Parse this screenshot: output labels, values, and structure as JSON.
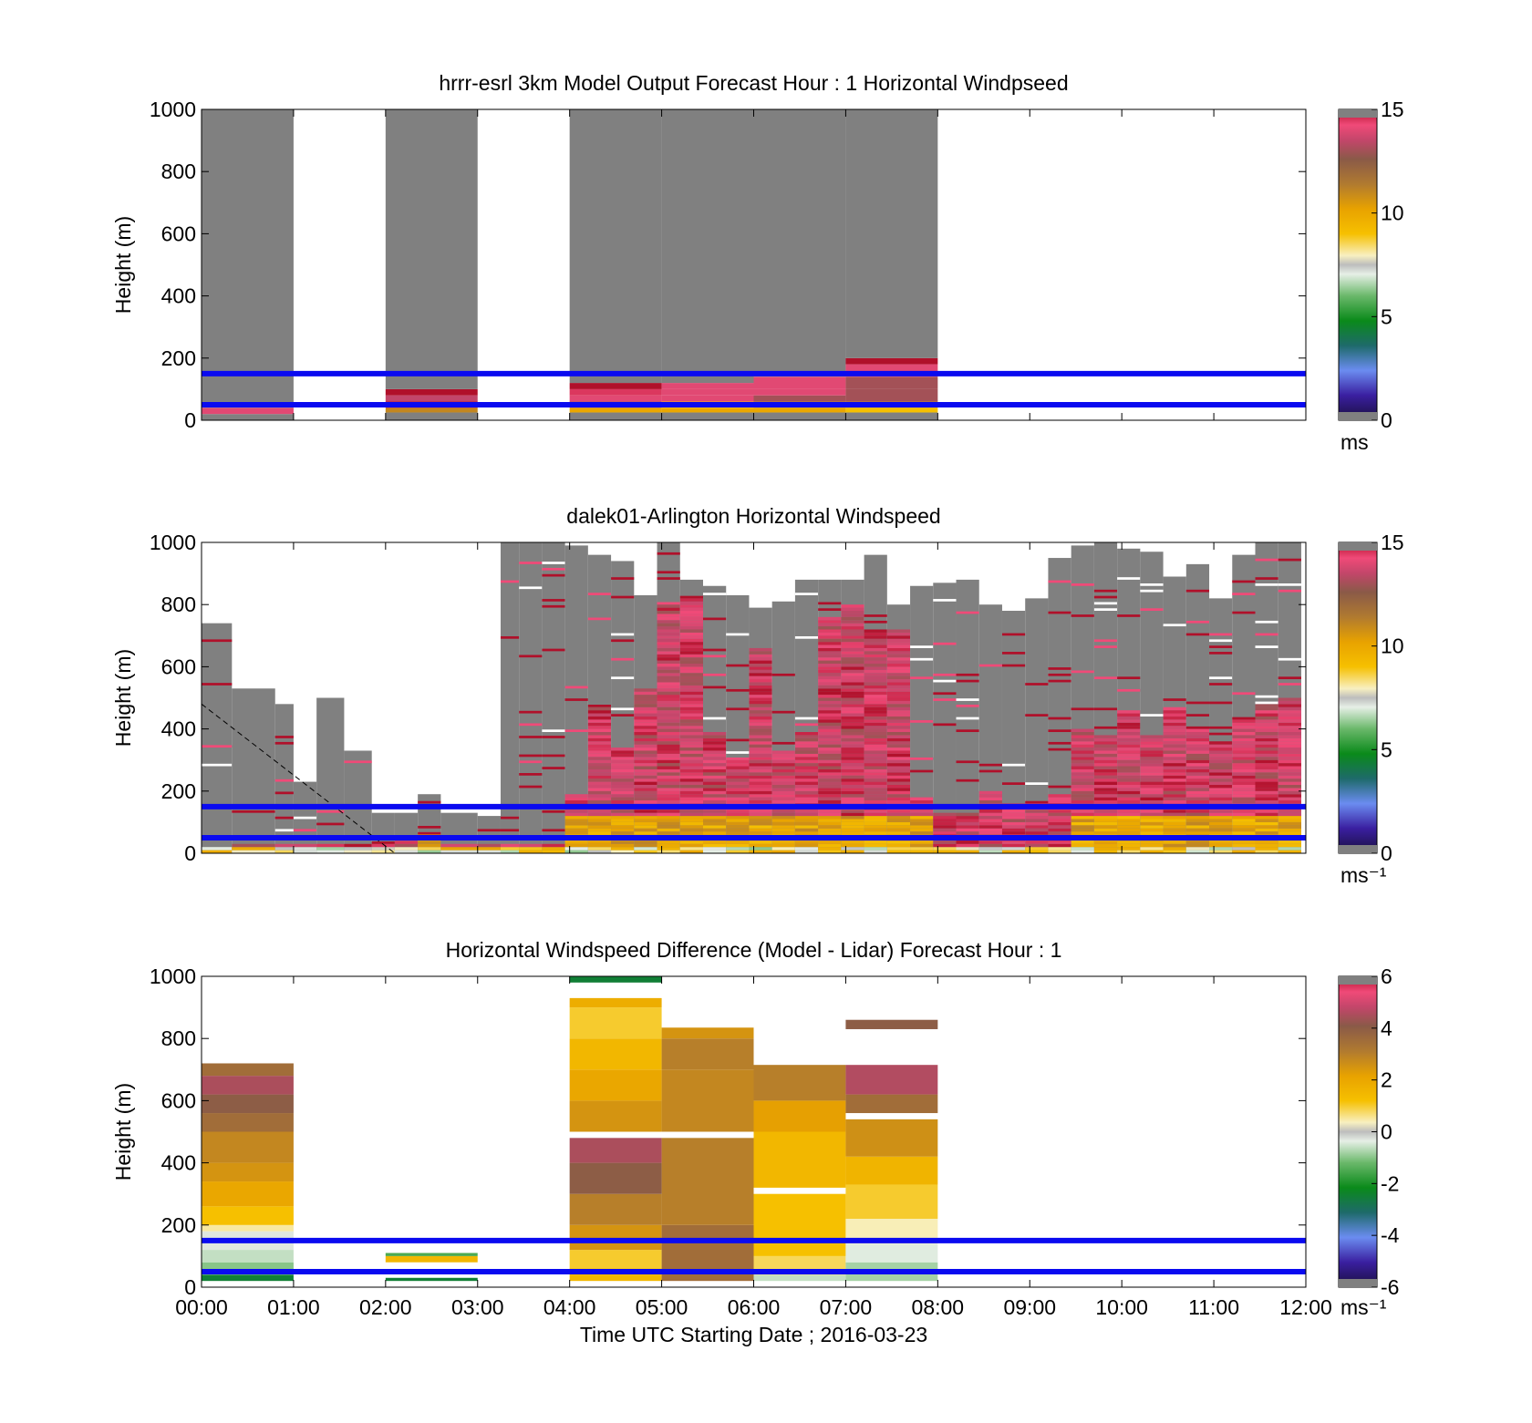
{
  "figure": {
    "x_tick_labels": [
      "00:00",
      "01:00",
      "02:00",
      "03:00",
      "04:00",
      "05:00",
      "06:00",
      "07:00",
      "08:00",
      "09:00",
      "10:00",
      "11:00",
      "12:00"
    ],
    "x_axis_label": "Time UTC  Starting Date ; 2016-03-23",
    "y_axis_label": "Height (m)",
    "y_tick_labels": [
      "0",
      "200",
      "400",
      "600",
      "800",
      "1000"
    ],
    "reference_lines_m": [
      50,
      150
    ],
    "colors": {
      "reference_line": "#0a0af0",
      "missing": "#808080"
    }
  },
  "chart_data": [
    {
      "type": "heatmap",
      "title": "hrrr-esrl 3km Model Output   Forecast Hour : 1 Horizontal Windpseed",
      "xlabel": "",
      "ylabel": "Height (m)",
      "xlim": [
        0,
        12
      ],
      "ylim": [
        0,
        1000
      ],
      "colorbar": {
        "range": [
          0,
          15
        ],
        "tick_labels": [
          "0",
          "5",
          "10",
          "15"
        ],
        "unit_label": "ms"
      },
      "columns": [
        {
          "start_hour": 0,
          "end_hour": 1,
          "cells": [
            [
              0,
              20,
              -1
            ],
            [
              20,
              40,
              14
            ],
            [
              40,
              1000,
              -1
            ]
          ]
        },
        {
          "start_hour": 2,
          "end_hour": 3,
          "cells": [
            [
              0,
              25,
              -1
            ],
            [
              25,
              40,
              11
            ],
            [
              40,
              60,
              15
            ],
            [
              60,
              80,
              13.5
            ],
            [
              80,
              100,
              15
            ],
            [
              100,
              1000,
              -1
            ]
          ]
        },
        {
          "start_hour": 4,
          "end_hour": 5,
          "cells": [
            [
              0,
              25,
              -1
            ],
            [
              25,
              40,
              10
            ],
            [
              40,
              60,
              13
            ],
            [
              60,
              80,
              14
            ],
            [
              80,
              100,
              14.5
            ],
            [
              100,
              120,
              15
            ],
            [
              120,
              1000,
              -1
            ]
          ]
        },
        {
          "start_hour": 5,
          "end_hour": 6,
          "cells": [
            [
              0,
              25,
              -1
            ],
            [
              25,
              40,
              10
            ],
            [
              40,
              60,
              9
            ],
            [
              60,
              80,
              14
            ],
            [
              80,
              100,
              14
            ],
            [
              100,
              120,
              14
            ],
            [
              120,
              1000,
              -1
            ]
          ]
        },
        {
          "start_hour": 6,
          "end_hour": 7,
          "cells": [
            [
              0,
              25,
              -1
            ],
            [
              25,
              40,
              10
            ],
            [
              40,
              60,
              11
            ],
            [
              60,
              80,
              13
            ],
            [
              80,
              100,
              14
            ],
            [
              100,
              140,
              14
            ],
            [
              140,
              1000,
              -1
            ]
          ]
        },
        {
          "start_hour": 7,
          "end_hour": 8,
          "cells": [
            [
              0,
              25,
              -1
            ],
            [
              25,
              40,
              9
            ],
            [
              40,
              60,
              11
            ],
            [
              60,
              100,
              13
            ],
            [
              100,
              140,
              13
            ],
            [
              140,
              180,
              14
            ],
            [
              180,
              200,
              15
            ],
            [
              200,
              1000,
              -1
            ]
          ]
        }
      ]
    },
    {
      "type": "heatmap",
      "title": "dalek01-Arlington  Horizontal Windspeed",
      "xlabel": "",
      "ylabel": "Height (m)",
      "xlim": [
        0,
        12
      ],
      "ylim": [
        0,
        1000
      ],
      "colorbar": {
        "range": [
          0,
          15
        ],
        "tick_labels": [
          "0",
          "5",
          "10",
          "15"
        ],
        "unit_label": "ms⁻¹"
      },
      "profiles": [
        {
          "t0": 0.0,
          "t1": 0.33,
          "missing_top": 740,
          "strong_top": 20,
          "gold": 0,
          "note_levels": []
        },
        {
          "t0": 0.33,
          "t1": 0.8,
          "missing_top": 530,
          "strong_top": 30,
          "gold": 0
        },
        {
          "t0": 0.8,
          "t1": 1.0,
          "missing_top": 480,
          "strong_top": 30,
          "gold": 0
        },
        {
          "t0": 1.0,
          "t1": 1.25,
          "missing_top": 230,
          "strong_top": 30,
          "gold": 0
        },
        {
          "t0": 1.25,
          "t1": 1.55,
          "missing_top": 500,
          "strong_top": 30,
          "gold": 0
        },
        {
          "t0": 1.55,
          "t1": 1.85,
          "missing_top": 330,
          "strong_top": 30,
          "gold": 0
        },
        {
          "t0": 1.85,
          "t1": 2.1,
          "missing_top": 130,
          "strong_top": 30,
          "gold": 0
        },
        {
          "t0": 2.1,
          "t1": 2.35,
          "missing_top": 130,
          "strong_top": 40,
          "gold": 0
        },
        {
          "t0": 2.35,
          "t1": 2.6,
          "missing_top": 190,
          "strong_top": 60,
          "gold": 1
        },
        {
          "t0": 2.6,
          "t1": 3.0,
          "missing_top": 130,
          "strong_top": 30,
          "gold": 0
        },
        {
          "t0": 3.0,
          "t1": 3.25,
          "missing_top": 120,
          "strong_top": 30,
          "gold": 0
        },
        {
          "t0": 3.25,
          "t1": 3.45,
          "missing_top": 1000,
          "strong_top": 30,
          "gold": 0
        },
        {
          "t0": 3.45,
          "t1": 3.7,
          "missing_top": 1000,
          "strong_top": 30,
          "gold": 0
        },
        {
          "t0": 3.7,
          "t1": 3.95,
          "missing_top": 1000,
          "strong_top": 30,
          "gold": 0
        },
        {
          "t0": 3.95,
          "t1": 4.2,
          "missing_top": 990,
          "strong_top": 190,
          "gold": 1
        },
        {
          "t0": 4.2,
          "t1": 4.45,
          "missing_top": 960,
          "strong_top": 470,
          "gold": 1
        },
        {
          "t0": 4.45,
          "t1": 4.7,
          "missing_top": 940,
          "strong_top": 340,
          "gold": 1
        },
        {
          "t0": 4.7,
          "t1": 4.95,
          "missing_top": 830,
          "strong_top": 530,
          "gold": 1
        },
        {
          "t0": 4.95,
          "t1": 5.2,
          "missing_top": 1000,
          "strong_top": 800,
          "gold": 1
        },
        {
          "t0": 5.2,
          "t1": 5.45,
          "missing_top": 880,
          "strong_top": 820,
          "gold": 1
        },
        {
          "t0": 5.45,
          "t1": 5.7,
          "missing_top": 860,
          "strong_top": 390,
          "gold": 1
        },
        {
          "t0": 5.7,
          "t1": 5.95,
          "missing_top": 830,
          "strong_top": 300,
          "gold": 1
        },
        {
          "t0": 5.95,
          "t1": 6.2,
          "missing_top": 790,
          "strong_top": 660,
          "gold": 1
        },
        {
          "t0": 6.2,
          "t1": 6.45,
          "missing_top": 810,
          "strong_top": 330,
          "gold": 1
        },
        {
          "t0": 6.45,
          "t1": 6.7,
          "missing_top": 880,
          "strong_top": 390,
          "gold": 1
        },
        {
          "t0": 6.7,
          "t1": 6.95,
          "missing_top": 880,
          "strong_top": 760,
          "gold": 1
        },
        {
          "t0": 6.95,
          "t1": 7.2,
          "missing_top": 880,
          "strong_top": 800,
          "gold": 1
        },
        {
          "t0": 7.2,
          "t1": 7.45,
          "missing_top": 960,
          "strong_top": 720,
          "gold": 1
        },
        {
          "t0": 7.45,
          "t1": 7.7,
          "missing_top": 800,
          "strong_top": 720,
          "gold": 1
        },
        {
          "t0": 7.7,
          "t1": 7.95,
          "missing_top": 860,
          "strong_top": 180,
          "gold": 1
        },
        {
          "t0": 7.95,
          "t1": 8.2,
          "missing_top": 870,
          "strong_top": 130,
          "gold": 0
        },
        {
          "t0": 8.2,
          "t1": 8.45,
          "missing_top": 880,
          "strong_top": 130,
          "gold": 0
        },
        {
          "t0": 8.45,
          "t1": 8.7,
          "missing_top": 800,
          "strong_top": 200,
          "gold": 0
        },
        {
          "t0": 8.7,
          "t1": 8.95,
          "missing_top": 780,
          "strong_top": 160,
          "gold": 0
        },
        {
          "t0": 8.95,
          "t1": 9.2,
          "missing_top": 820,
          "strong_top": 160,
          "gold": 0
        },
        {
          "t0": 9.2,
          "t1": 9.45,
          "missing_top": 950,
          "strong_top": 190,
          "gold": 0
        },
        {
          "t0": 9.45,
          "t1": 9.7,
          "missing_top": 990,
          "strong_top": 400,
          "gold": 1
        },
        {
          "t0": 9.7,
          "t1": 9.95,
          "missing_top": 1000,
          "strong_top": 380,
          "gold": 1
        },
        {
          "t0": 9.95,
          "t1": 10.2,
          "missing_top": 980,
          "strong_top": 460,
          "gold": 1
        },
        {
          "t0": 10.2,
          "t1": 10.45,
          "missing_top": 970,
          "strong_top": 380,
          "gold": 1
        },
        {
          "t0": 10.45,
          "t1": 10.7,
          "missing_top": 890,
          "strong_top": 470,
          "gold": 1
        },
        {
          "t0": 10.7,
          "t1": 10.95,
          "missing_top": 930,
          "strong_top": 400,
          "gold": 1
        },
        {
          "t0": 10.95,
          "t1": 11.2,
          "missing_top": 820,
          "strong_top": 360,
          "gold": 1
        },
        {
          "t0": 11.2,
          "t1": 11.45,
          "missing_top": 960,
          "strong_top": 430,
          "gold": 1
        },
        {
          "t0": 11.45,
          "t1": 11.7,
          "missing_top": 1000,
          "strong_top": 480,
          "gold": 1
        },
        {
          "t0": 11.7,
          "t1": 11.95,
          "missing_top": 1000,
          "strong_top": 500,
          "gold": 1
        }
      ]
    },
    {
      "type": "heatmap",
      "title": "Horizontal Windspeed Difference (Model - Lidar) Forecast Hour : 1",
      "xlabel": "Time UTC  Starting Date ; 2016-03-23",
      "ylabel": "Height (m)",
      "xlim": [
        0,
        12
      ],
      "ylim": [
        0,
        1000
      ],
      "colorbar": {
        "range": [
          -6,
          6
        ],
        "tick_labels": [
          "-6",
          "-4",
          "-2",
          "0",
          "2",
          "4",
          "6"
        ],
        "unit_label": "ms⁻¹"
      },
      "columns": [
        {
          "start_hour": 0,
          "end_hour": 1,
          "cells": [
            [
              20,
              40,
              -2.5
            ],
            [
              40,
              80,
              -1
            ],
            [
              80,
              120,
              -0.6
            ],
            [
              120,
              180,
              -0.3
            ],
            [
              180,
              200,
              0.5
            ],
            [
              200,
              260,
              1.2
            ],
            [
              260,
              340,
              2
            ],
            [
              340,
              400,
              2.5
            ],
            [
              400,
              500,
              2.8
            ],
            [
              500,
              560,
              3.5
            ],
            [
              560,
              620,
              4
            ],
            [
              620,
              680,
              4.5
            ],
            [
              680,
              720,
              3.5
            ]
          ]
        },
        {
          "start_hour": 2,
          "end_hour": 3,
          "cells": [
            [
              20,
              30,
              -2.5
            ],
            [
              80,
              100,
              1.5
            ],
            [
              100,
              110,
              -1.5
            ]
          ]
        },
        {
          "start_hour": 4,
          "end_hour": 5,
          "cells": [
            [
              20,
              60,
              1.5
            ],
            [
              60,
              120,
              1
            ],
            [
              120,
              200,
              2.5
            ],
            [
              200,
              300,
              3
            ],
            [
              300,
              400,
              4
            ],
            [
              400,
              480,
              4.5
            ],
            [
              500,
              600,
              2.5
            ],
            [
              600,
              700,
              2
            ],
            [
              700,
              800,
              1.5
            ],
            [
              800,
              900,
              1
            ],
            [
              900,
              930,
              1.8
            ],
            [
              980,
              1000,
              -2.5
            ]
          ]
        },
        {
          "start_hour": 5,
          "end_hour": 6,
          "cells": [
            [
              20,
              200,
              3.5
            ],
            [
              200,
              480,
              3
            ],
            [
              500,
              700,
              2.8
            ],
            [
              700,
              800,
              3
            ],
            [
              800,
              835,
              2.5
            ]
          ]
        },
        {
          "start_hour": 6,
          "end_hour": 7,
          "cells": [
            [
              20,
              40,
              -0.6
            ],
            [
              40,
              100,
              0.8
            ],
            [
              100,
              300,
              1.2
            ],
            [
              320,
              500,
              1.5
            ],
            [
              500,
              600,
              2.2
            ],
            [
              600,
              715,
              3
            ]
          ]
        },
        {
          "start_hour": 7,
          "end_hour": 8,
          "cells": [
            [
              20,
              80,
              -0.8
            ],
            [
              80,
              140,
              -0.4
            ],
            [
              140,
              220,
              0.4
            ],
            [
              220,
              330,
              1
            ],
            [
              330,
              420,
              1.6
            ],
            [
              420,
              540,
              2.6
            ],
            [
              560,
              620,
              3.5
            ],
            [
              620,
              715,
              4.6
            ],
            [
              830,
              860,
              4
            ]
          ]
        }
      ]
    }
  ]
}
